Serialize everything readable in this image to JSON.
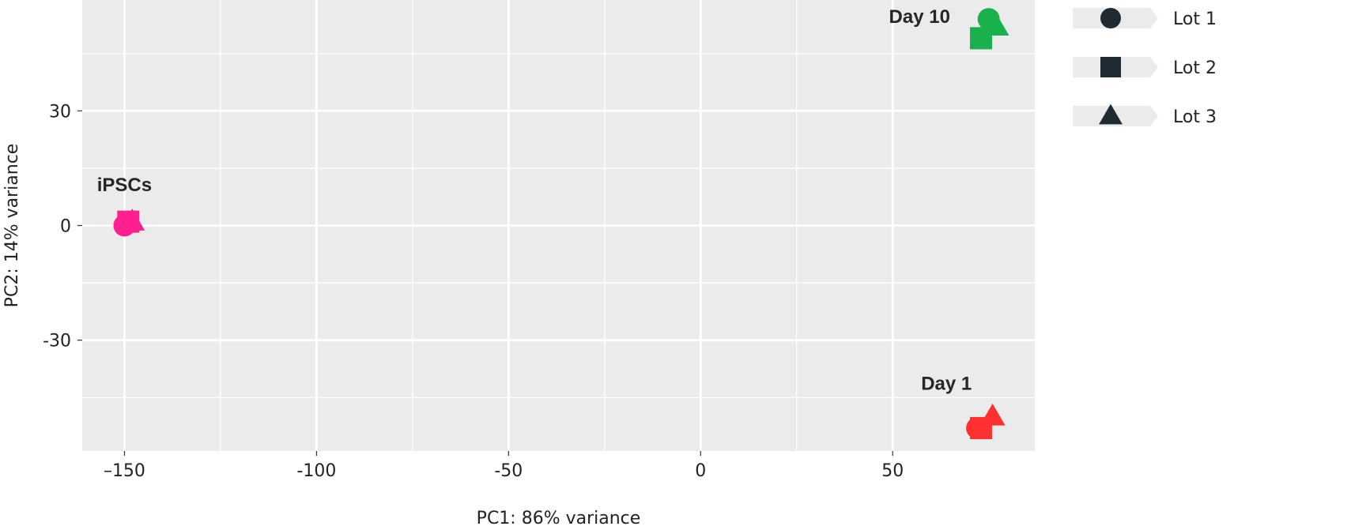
{
  "chart_data": {
    "type": "scatter",
    "xlabel": "PC1: 86% variance",
    "ylabel": "PC2: 14% variance",
    "xlim": [
      -161,
      87
    ],
    "ylim": [
      -59,
      59
    ],
    "x_ticks": [
      -150,
      -100,
      -50,
      0,
      50
    ],
    "x_tick_labels": [
      "–150",
      "-100",
      "-50",
      "0",
      "50"
    ],
    "y_ticks": [
      30,
      0,
      -30
    ],
    "y_tick_labels": [
      "30",
      "0",
      "-30"
    ],
    "grid": true,
    "legend_placement": "right",
    "groups": [
      {
        "label": "iPSCs",
        "color": "#ff1f8e",
        "label_x": -150,
        "label_y": 9
      },
      {
        "label": "Day 10",
        "color": "#19b14c",
        "label_x": 57,
        "label_y": 53
      },
      {
        "label": "Day 1",
        "color": "#ff3030",
        "label_x": 64,
        "label_y": -43
      }
    ],
    "series": [
      {
        "name": "Lot 1",
        "shape": "circle",
        "points": [
          {
            "x": -150,
            "y": 0,
            "group": "iPSCs"
          },
          {
            "x": 75,
            "y": 54,
            "group": "Day 10"
          },
          {
            "x": 72,
            "y": -53,
            "group": "Day 1"
          }
        ]
      },
      {
        "name": "Lot 2",
        "shape": "square",
        "points": [
          {
            "x": -149,
            "y": 1,
            "group": "iPSCs"
          },
          {
            "x": 73,
            "y": 49,
            "group": "Day 10"
          },
          {
            "x": 73,
            "y": -53,
            "group": "Day 1"
          }
        ]
      },
      {
        "name": "Lot 3",
        "shape": "triangle",
        "points": [
          {
            "x": -148,
            "y": 1,
            "group": "iPSCs"
          },
          {
            "x": 77,
            "y": 52,
            "group": "Day 10"
          },
          {
            "x": 76,
            "y": -50,
            "group": "Day 1"
          }
        ]
      }
    ]
  },
  "colors": {
    "panel_background": "#ebebeb",
    "grid": "#ffffff",
    "legend_marker": "#1f2a33"
  }
}
